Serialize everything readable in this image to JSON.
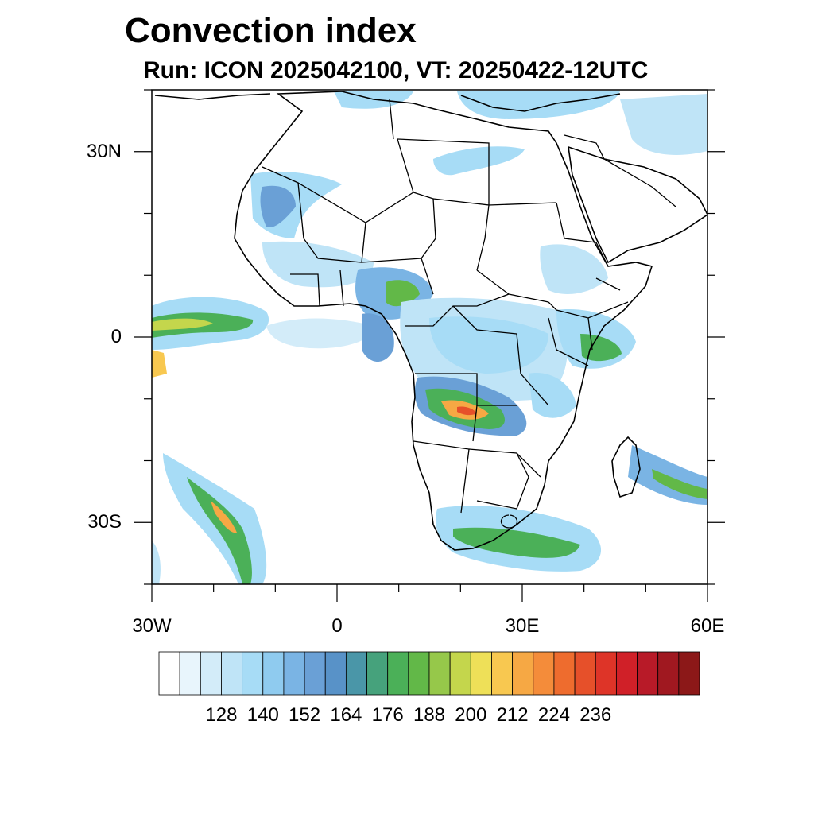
{
  "header": {
    "title": "Convection index",
    "subtitle": "Run: ICON 2025042100,  VT: 20250422-12UTC"
  },
  "map": {
    "region": "Africa",
    "lon_range": [
      -30,
      60
    ],
    "lat_range": [
      -40,
      40
    ],
    "lat_ticks": [
      {
        "value": 30,
        "label": "30N"
      },
      {
        "value": 0,
        "label": "0"
      },
      {
        "value": -30,
        "label": "30S"
      }
    ],
    "lon_ticks": [
      {
        "value": -30,
        "label": "30W"
      },
      {
        "value": 0,
        "label": "0"
      },
      {
        "value": 30,
        "label": "30E"
      },
      {
        "value": 60,
        "label": "60E"
      }
    ]
  },
  "colorbar": {
    "colors": [
      "#ffffff",
      "#e8f5fc",
      "#d3ecf9",
      "#bfe4f7",
      "#a7dcf6",
      "#8fcbef",
      "#7ab4e4",
      "#6aa0d6",
      "#5892c8",
      "#4a96a8",
      "#46a27c",
      "#4bb058",
      "#62b848",
      "#96c84a",
      "#c4d64c",
      "#eee058",
      "#f8c850",
      "#f6a844",
      "#f48c3a",
      "#ee6c2e",
      "#e6502a",
      "#de3428",
      "#d02028",
      "#b81a28",
      "#a01820",
      "#8c1818"
    ],
    "labels": [
      "128",
      "140",
      "152",
      "164",
      "176",
      "188",
      "200",
      "212",
      "224",
      "236"
    ]
  }
}
